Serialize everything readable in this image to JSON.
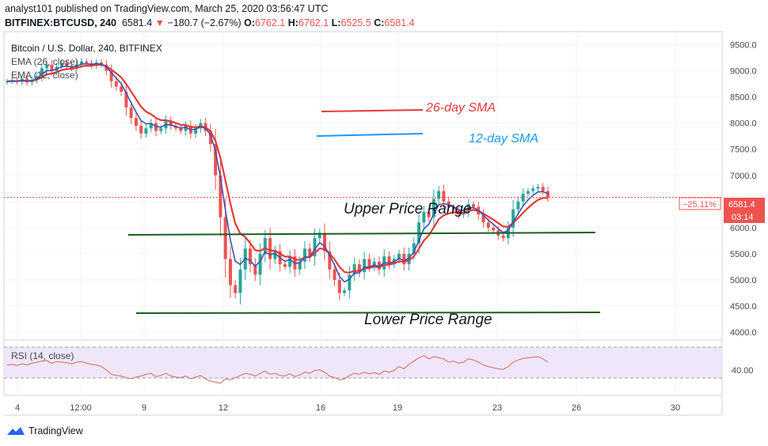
{
  "header": {
    "line1": "analyst101 published on TradingView.com, March 25, 2020 03:56:47 UTC",
    "symbol": "BITFINEX:BTCUSD, 240",
    "price": "6581.4",
    "arrow": "▼",
    "change": "−180.7 (−2.67%)",
    "o_label": "O:",
    "o_val": "6762.1",
    "h_label": "H:",
    "h_val": "6762.1",
    "l_label": "L:",
    "l_val": "6525.5",
    "c_label": "C:",
    "c_val": "6581.4"
  },
  "legend": {
    "title": "Bitcoin / U.S. Dollar, 240, BITFINEX",
    "ema26": "EMA (26, close)",
    "ema12": "EMA (12, close)"
  },
  "price_tags": {
    "pct": "−25.11%",
    "price": "6581.4",
    "timer": "03:14"
  },
  "watermark": "TradingView",
  "colors": {
    "up": "#26a69a",
    "down": "#ef5350",
    "ema26": "#e53935",
    "ema12": "#3f51b5",
    "sma_blue": "#2196f3",
    "rsi": "#d26a5a",
    "hline": "#1b5e20"
  },
  "chart_data": {
    "type": "candlestick",
    "y_axis": {
      "ticks": [
        4000,
        4500,
        5000,
        5500,
        6000,
        6500,
        7000,
        7500,
        8000,
        8500,
        9000,
        9500
      ],
      "range": [
        3850,
        9750
      ]
    },
    "x_axis": {
      "ticks": [
        "4",
        "12:00",
        "9",
        "12",
        "16",
        "19",
        "23",
        "26",
        "30"
      ]
    },
    "series_close": [
      8800,
      8820,
      8790,
      8850,
      8780,
      8830,
      8900,
      9050,
      9120,
      9000,
      9080,
      9150,
      9100,
      9050,
      9120,
      9180,
      9150,
      9100,
      9160,
      9120,
      9000,
      8800,
      8700,
      8600,
      8300,
      8100,
      7950,
      7800,
      7900,
      8000,
      7850,
      7900,
      8050,
      7950,
      7900,
      7850,
      7950,
      7800,
      7900,
      8000,
      7850,
      7600,
      7000,
      6200,
      5400,
      4900,
      4750,
      5200,
      5600,
      5300,
      5100,
      5500,
      5800,
      5400,
      5550,
      5300,
      5250,
      5450,
      5200,
      5350,
      5600,
      5450,
      5800,
      5900,
      5550,
      5200,
      5000,
      4750,
      4800,
      5100,
      5300,
      5150,
      5400,
      5250,
      5350,
      5200,
      5450,
      5300,
      5400,
      5500,
      5300,
      5500,
      5700,
      6100,
      6300,
      6200,
      6550,
      6700,
      6500,
      6400,
      6350,
      6250,
      6300,
      6450,
      6400,
      6250,
      6100,
      6000,
      5950,
      5850,
      5800,
      6000,
      6350,
      6500,
      6650,
      6700,
      6750,
      6780,
      6700,
      6581.4
    ],
    "ema26_label": "EMA (26, close)",
    "ema12_label": "EMA (12, close)",
    "annotations": {
      "sma26": "26-day SMA",
      "sma12": "12-day SMA",
      "upper": "Upper Price Range",
      "lower": "Lower Price Range"
    },
    "rsi": {
      "label": "RSI (14, close)",
      "tick": "40.00",
      "values": [
        55,
        56,
        54,
        57,
        55,
        58,
        60,
        62,
        63,
        58,
        61,
        60,
        59,
        57,
        60,
        61,
        58,
        56,
        55,
        52,
        46,
        38,
        36,
        35,
        32,
        30,
        33,
        35,
        38,
        40,
        34,
        36,
        40,
        35,
        33,
        32,
        35,
        30,
        33,
        36,
        30,
        26,
        24,
        22,
        30,
        28,
        32,
        36,
        40,
        38,
        35,
        40,
        44,
        38,
        40,
        36,
        35,
        39,
        34,
        37,
        42,
        40,
        45,
        46,
        42,
        35,
        32,
        28,
        30,
        36,
        40,
        38,
        42,
        39,
        41,
        38,
        44,
        42,
        45,
        52,
        48,
        56,
        62,
        68,
        72,
        66,
        70,
        68,
        66,
        60,
        62,
        58,
        60,
        66,
        64,
        60,
        55,
        52,
        50,
        48,
        47,
        52,
        60,
        64,
        67,
        68,
        69,
        70,
        66,
        60
      ]
    }
  }
}
